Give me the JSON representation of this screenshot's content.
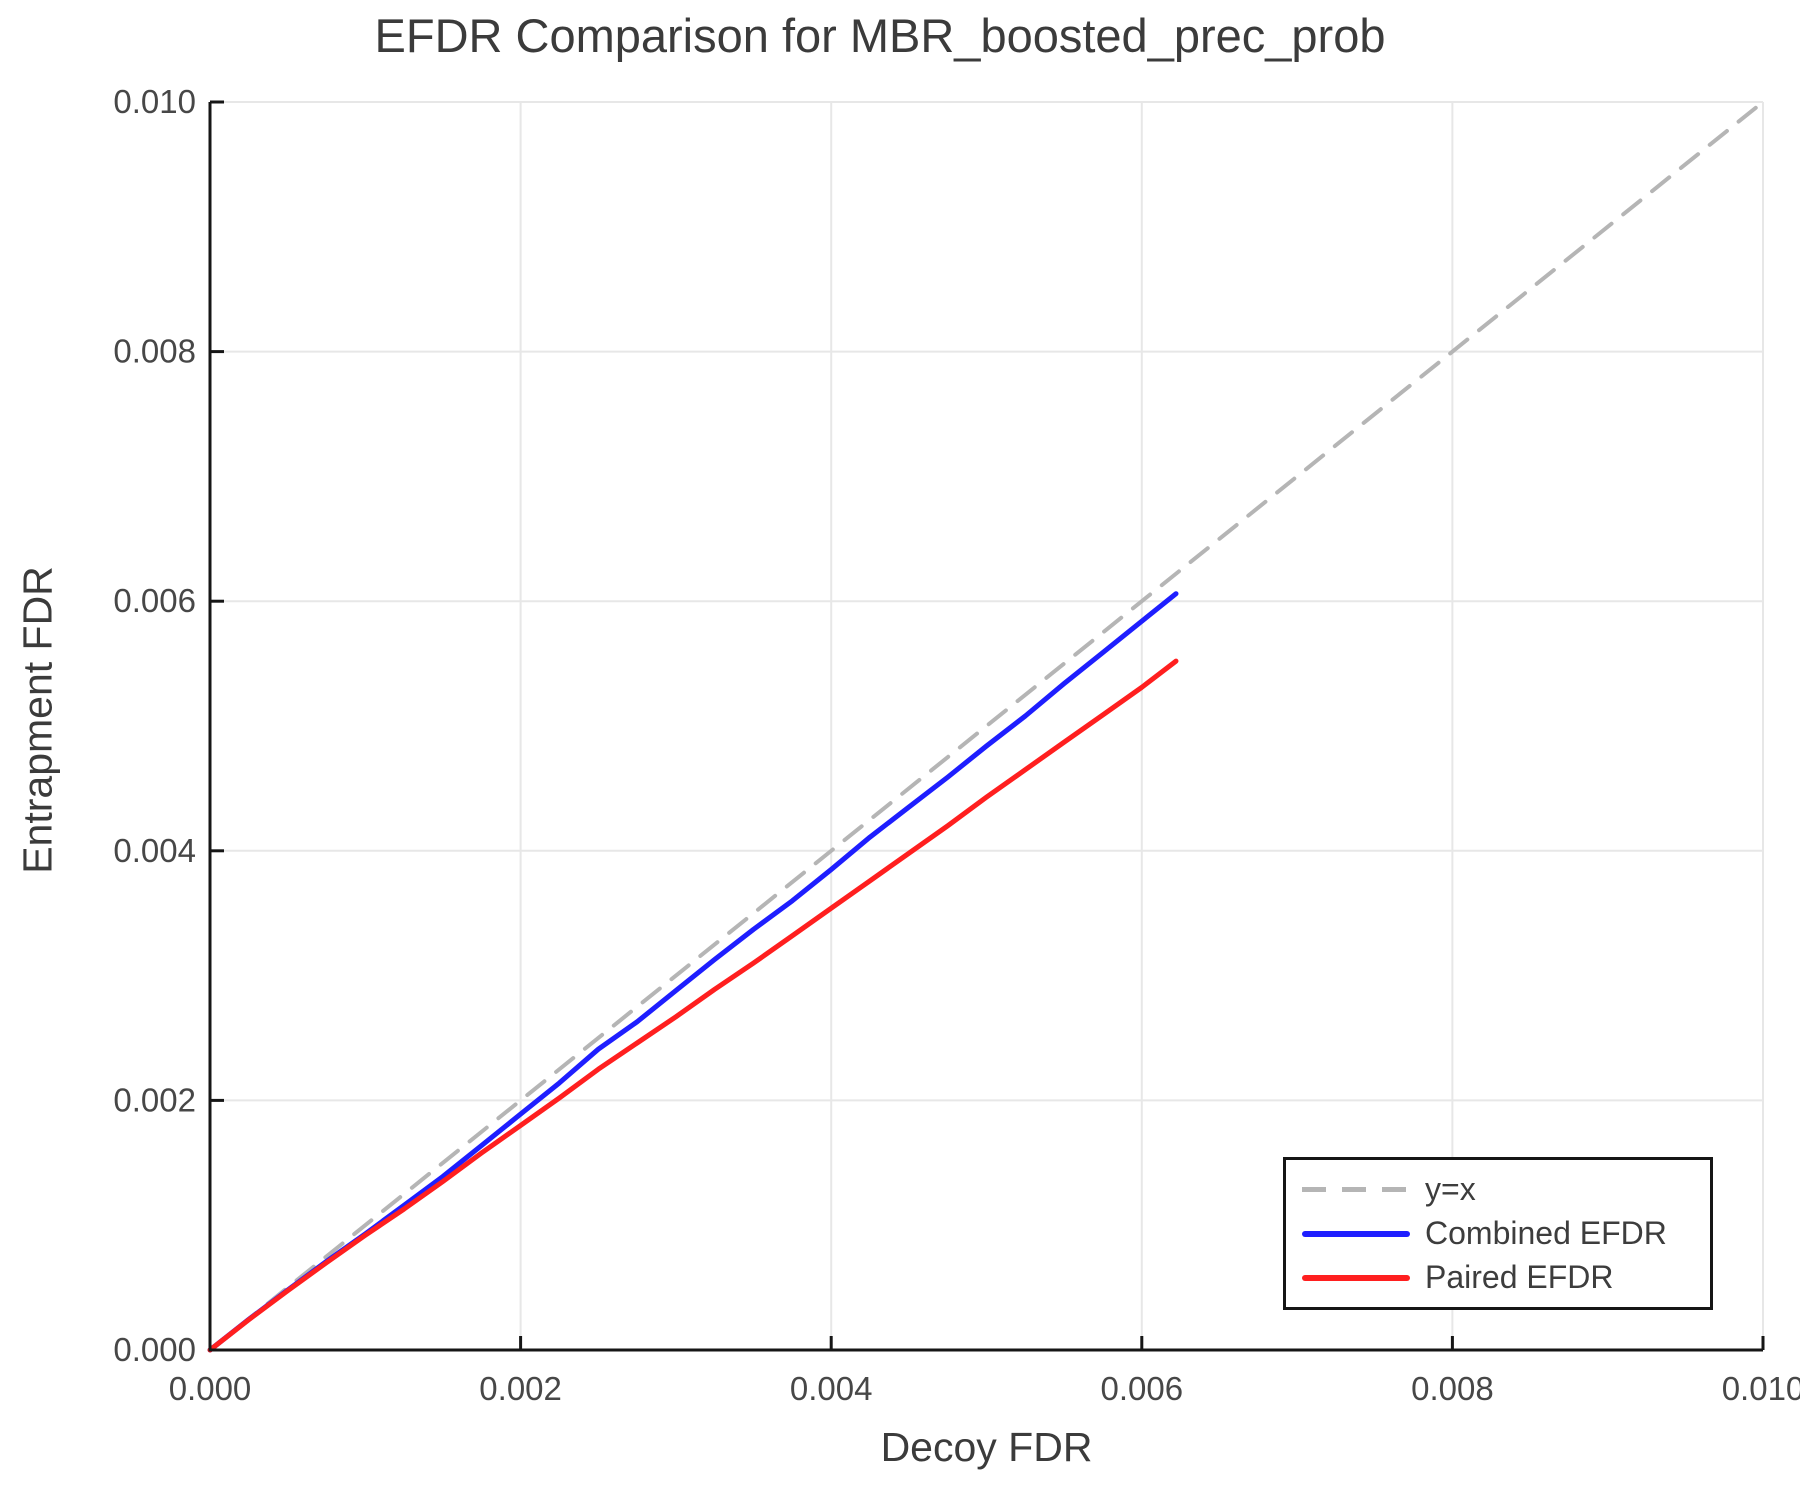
{
  "chart_data": {
    "type": "line",
    "title": "EFDR Comparison for MBR_boosted_prec_prob",
    "xlabel": "Decoy FDR",
    "ylabel": "Entrapment FDR",
    "xlim": [
      0.0,
      0.01
    ],
    "ylim": [
      0.0,
      0.01
    ],
    "xticks": [
      0.0,
      0.002,
      0.004,
      0.006,
      0.008,
      0.01
    ],
    "xtick_labels": [
      "0.000",
      "0.002",
      "0.004",
      "0.006",
      "0.008",
      "0.010"
    ],
    "yticks": [
      0.0,
      0.002,
      0.004,
      0.006,
      0.008,
      0.01
    ],
    "ytick_labels": [
      "0.000",
      "0.002",
      "0.004",
      "0.006",
      "0.008",
      "0.010"
    ],
    "grid": true,
    "grid_color": "#e7e7e7",
    "axis_color": "#161616",
    "tick_label_color": "#474747",
    "legend_position": "lower right",
    "series": [
      {
        "name": "y=x",
        "style": "dashed",
        "color": "#b5b5b5",
        "line_width": 4,
        "x": [
          0.0,
          0.01
        ],
        "y": [
          0.0,
          0.01
        ]
      },
      {
        "name": "Combined EFDR",
        "style": "solid",
        "color": "#1e1eff",
        "line_width": 5,
        "x": [
          0.0,
          0.00025,
          0.0005,
          0.00075,
          0.001,
          0.00125,
          0.0015,
          0.00175,
          0.002,
          0.00225,
          0.0025,
          0.00275,
          0.003,
          0.00325,
          0.0035,
          0.00375,
          0.004,
          0.00425,
          0.0045,
          0.00475,
          0.005,
          0.00525,
          0.0055,
          0.00575,
          0.006,
          0.00622
        ],
        "y": [
          0.0,
          0.000245,
          0.00048,
          0.00071,
          0.00093,
          0.00116,
          0.00139,
          0.00164,
          0.00189,
          0.00214,
          0.00241,
          0.00263,
          0.00288,
          0.00313,
          0.00337,
          0.0036,
          0.00385,
          0.00411,
          0.00435,
          0.00459,
          0.00484,
          0.00508,
          0.00534,
          0.00559,
          0.00584,
          0.00606
        ]
      },
      {
        "name": "Paired EFDR",
        "style": "solid",
        "color": "#ff1f1f",
        "line_width": 5,
        "x": [
          0.0,
          0.00025,
          0.0005,
          0.00075,
          0.001,
          0.00125,
          0.0015,
          0.00175,
          0.002,
          0.00225,
          0.0025,
          0.00275,
          0.003,
          0.00325,
          0.0035,
          0.00375,
          0.004,
          0.00425,
          0.0045,
          0.00475,
          0.005,
          0.00525,
          0.0055,
          0.00575,
          0.006,
          0.00622
        ],
        "y": [
          0.0,
          0.000243,
          0.000475,
          0.0007,
          0.00092,
          0.00113,
          0.00135,
          0.00158,
          0.0018,
          0.00202,
          0.00225,
          0.00246,
          0.00267,
          0.00289,
          0.0031,
          0.00332,
          0.00354,
          0.00376,
          0.00398,
          0.0042,
          0.00443,
          0.00465,
          0.00487,
          0.00509,
          0.00531,
          0.00552
        ]
      }
    ]
  }
}
